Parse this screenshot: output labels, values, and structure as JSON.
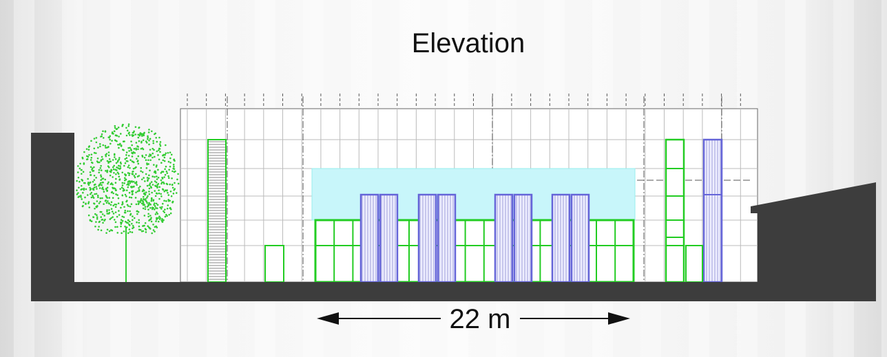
{
  "title": "Elevation",
  "dimension": {
    "label": "22 m"
  }
}
